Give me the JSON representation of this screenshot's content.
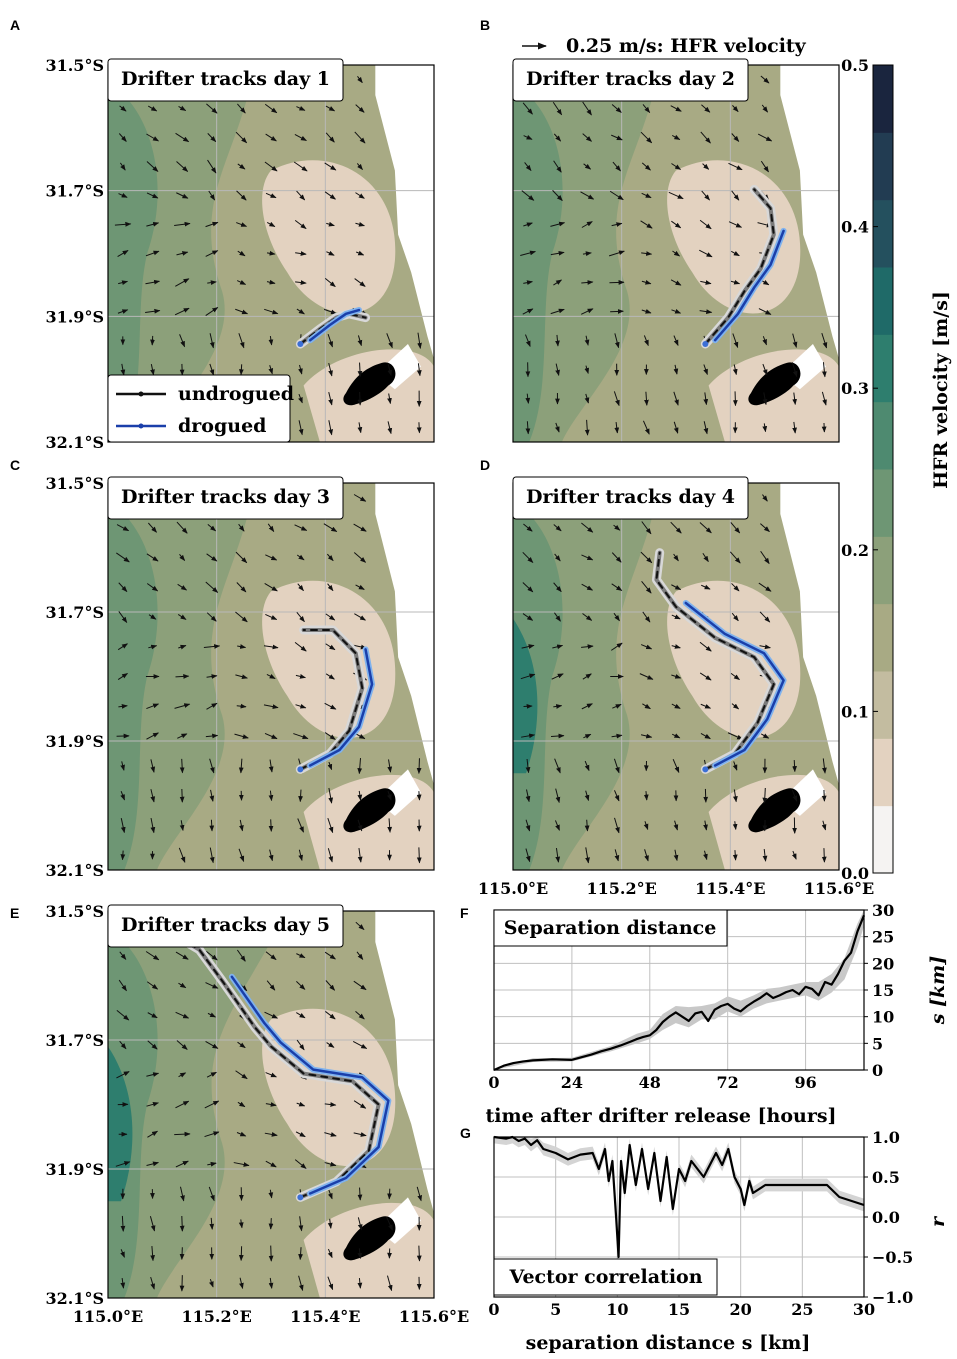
{
  "panel_letters": {
    "a": "A",
    "b": "B",
    "c": "C",
    "d": "D",
    "e": "E",
    "f": "F",
    "g": "G"
  },
  "maps": {
    "lat_ticks": [
      "31.5°S",
      "31.7°S",
      "31.9°S",
      "32.1°S"
    ],
    "lon_ticks": [
      "115.0°E",
      "115.2°E",
      "115.4°E",
      "115.6°E"
    ],
    "lat_range": [
      -32.1,
      -31.5
    ],
    "lon_range": [
      115.0,
      115.6
    ],
    "grid": true,
    "land_color": "#ffffff",
    "island_color": "#000000",
    "quiver_key_label": "0.25 m/s: HFR velocity",
    "panels": [
      {
        "letter": "A",
        "title": "Drifter tracks day 1",
        "day": 1
      },
      {
        "letter": "B",
        "title": "Drifter tracks day 2",
        "day": 2
      },
      {
        "letter": "C",
        "title": "Drifter tracks day 3",
        "day": 3
      },
      {
        "letter": "D",
        "title": "Drifter tracks day 4",
        "day": 4
      },
      {
        "letter": "E",
        "title": "Drifter tracks day 5",
        "day": 5
      }
    ],
    "legend": [
      {
        "label": "undrogued",
        "color": "#111111"
      },
      {
        "label": "drogued",
        "color": "#1a3faa"
      }
    ]
  },
  "colorbar": {
    "label": "HFR velocity [m/s]",
    "ticks": [
      "0.0",
      "0.1",
      "0.2",
      "0.3",
      "0.4",
      "0.5"
    ],
    "range": [
      0,
      0.5
    ],
    "colors": [
      "#f5f3f2",
      "#e3d2c0",
      "#c3bca0",
      "#a8aa84",
      "#8ca07a",
      "#6e9674",
      "#4e8a70",
      "#2e7e6e",
      "#1f6a68",
      "#24505e",
      "#223c52",
      "#1a253e"
    ]
  },
  "chart_data": [
    {
      "type": "line",
      "panel": "F",
      "title": "Separation distance",
      "xlabel": "time after drifter release [hours]",
      "ylabel": "s [km]",
      "xlim": [
        0,
        114
      ],
      "ylim": [
        0,
        30
      ],
      "xticks": [
        "0",
        "24",
        "48",
        "72",
        "96"
      ],
      "yticks": [
        "0",
        "5",
        "10",
        "15",
        "20",
        "25",
        "30"
      ],
      "grid": true,
      "series": [
        {
          "line": "mean",
          "color": "#000000",
          "x": [
            0,
            3,
            6,
            9,
            12,
            18,
            24,
            27,
            30,
            33,
            36,
            39,
            42,
            44,
            46,
            48,
            50,
            52,
            54,
            56,
            58,
            60,
            62,
            64,
            66,
            68,
            70,
            72,
            74,
            76,
            78,
            80,
            82,
            84,
            86,
            88,
            90,
            92,
            94,
            96,
            98,
            100,
            102,
            104,
            106,
            108,
            110,
            112,
            114
          ],
          "y": [
            0,
            0.8,
            1.3,
            1.6,
            1.8,
            2.0,
            1.9,
            2.4,
            2.9,
            3.5,
            4.0,
            4.6,
            5.3,
            5.8,
            6.2,
            6.5,
            7.5,
            9.0,
            10.0,
            10.8,
            10.0,
            9.2,
            10.6,
            10.9,
            9.2,
            11.3,
            12.0,
            12.4,
            11.5,
            11.0,
            12.0,
            12.8,
            13.5,
            14.4,
            13.5,
            14.0,
            14.6,
            15.0,
            14.2,
            15.6,
            15.2,
            14.0,
            16.5,
            16.0,
            18.0,
            20.5,
            22.0,
            26.0,
            29.0
          ]
        },
        {
          "line": "spread",
          "color": "#c8c8c8",
          "x": [
            0,
            12,
            24,
            36,
            44,
            48,
            52,
            56,
            60,
            64,
            68,
            72,
            76,
            80,
            84,
            88,
            92,
            96,
            100,
            104,
            108,
            112,
            114
          ],
          "y_low": [
            0,
            1.5,
            1.6,
            3.5,
            5.0,
            5.8,
            7.5,
            8.8,
            8.0,
            9.5,
            9.5,
            11.0,
            10.0,
            11.5,
            12.5,
            13.0,
            13.5,
            14.0,
            13.0,
            14.5,
            17.0,
            23.0,
            27.0
          ],
          "y_high": [
            0.2,
            2.2,
            2.3,
            4.5,
            6.8,
            7.5,
            10.5,
            12.0,
            11.8,
            12.0,
            12.5,
            13.8,
            13.0,
            14.0,
            15.2,
            15.5,
            16.0,
            16.5,
            16.5,
            18.0,
            21.0,
            27.5,
            30.0
          ]
        }
      ]
    },
    {
      "type": "line",
      "panel": "G",
      "title": "Vector correlation",
      "xlabel": "separation distance s [km]",
      "ylabel": "r",
      "xlim": [
        0,
        30
      ],
      "ylim": [
        -1.0,
        1.0
      ],
      "xticks": [
        "0",
        "5",
        "10",
        "15",
        "20",
        "25",
        "30"
      ],
      "yticks": [
        "1.0",
        "0.5",
        "0.0",
        "−0.5",
        "−1.0"
      ],
      "grid": true,
      "series": [
        {
          "line": "mean",
          "color": "#000000",
          "x": [
            0,
            1,
            1.5,
            2,
            2.5,
            3,
            3.5,
            4,
            5,
            6,
            7,
            8,
            8.5,
            9,
            9.3,
            9.6,
            9.9,
            10.1,
            10.3,
            10.6,
            11,
            11.5,
            12,
            12.5,
            13,
            13.5,
            14,
            14.5,
            15,
            15.5,
            16,
            17,
            18,
            18.5,
            19,
            19.5,
            20,
            20.3,
            20.7,
            21,
            22,
            23,
            25,
            27,
            28,
            30
          ],
          "y": [
            1.0,
            0.98,
            1.0,
            0.95,
            0.98,
            0.9,
            0.96,
            0.85,
            0.8,
            0.72,
            0.78,
            0.8,
            0.6,
            0.85,
            0.45,
            0.7,
            0.0,
            -0.5,
            0.7,
            0.3,
            0.9,
            0.4,
            0.85,
            0.35,
            0.8,
            0.2,
            0.75,
            0.1,
            0.6,
            0.45,
            0.7,
            0.5,
            0.8,
            0.65,
            0.85,
            0.5,
            0.35,
            0.15,
            0.45,
            0.3,
            0.4,
            0.4,
            0.4,
            0.4,
            0.25,
            0.15
          ]
        }
      ]
    }
  ]
}
